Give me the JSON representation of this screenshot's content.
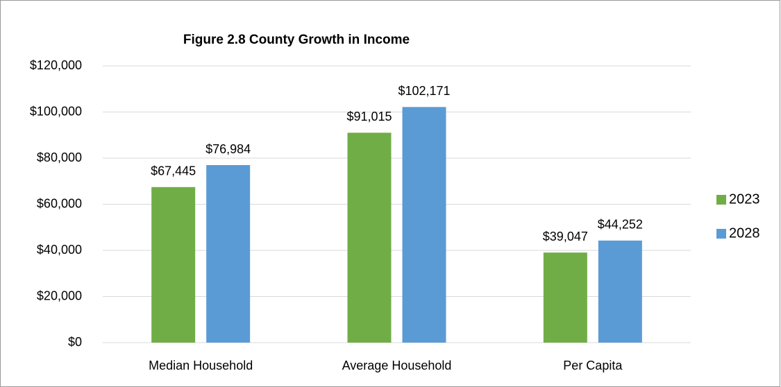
{
  "chart_data": {
    "type": "bar",
    "title": "Figure 2.8 County Growth in Income",
    "categories": [
      "Median Household",
      "Average Household",
      "Per Capita"
    ],
    "series": [
      {
        "name": "2023",
        "color": "#70ad47",
        "values": [
          67445,
          91015,
          39047
        ],
        "value_labels": [
          "$67,445",
          "$91,015",
          "$39,047"
        ]
      },
      {
        "name": "2028",
        "color": "#5b9bd5",
        "values": [
          76984,
          102171,
          44252
        ],
        "value_labels": [
          "$76,984",
          "$102,171",
          "$44,252"
        ]
      }
    ],
    "ylim": [
      0,
      120000
    ],
    "yticks": [
      {
        "value": 0,
        "label": "$0"
      },
      {
        "value": 20000,
        "label": "$20,000"
      },
      {
        "value": 40000,
        "label": "$40,000"
      },
      {
        "value": 60000,
        "label": "$60,000"
      },
      {
        "value": 80000,
        "label": "$80,000"
      },
      {
        "value": 100000,
        "label": "$100,000"
      },
      {
        "value": 120000,
        "label": "$120,000"
      }
    ],
    "grid": true,
    "legend": "right"
  }
}
